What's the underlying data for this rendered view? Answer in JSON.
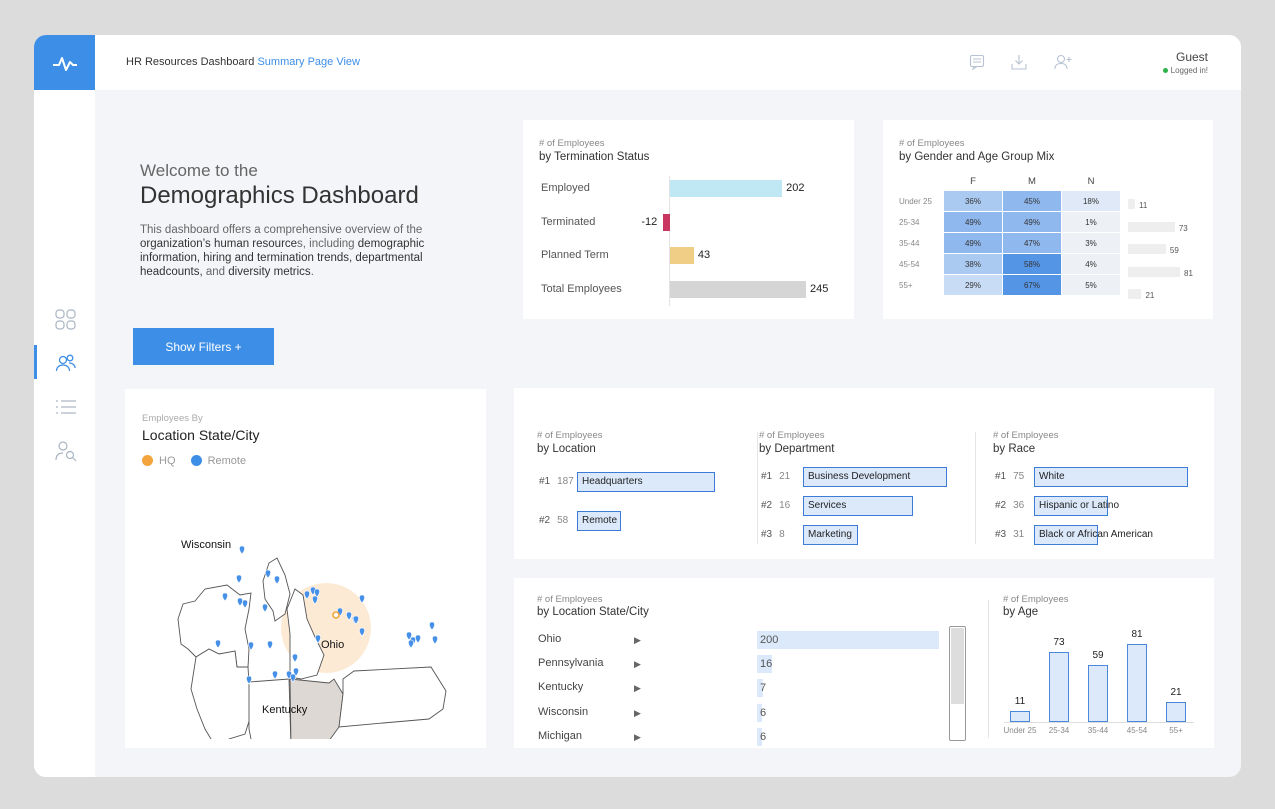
{
  "header": {
    "title": "HR Resources Dashboard",
    "view": "Summary Page View"
  },
  "user": {
    "name": "Guest",
    "status": "Logged in!"
  },
  "icons": {
    "logo": "pulse-icon",
    "topbar": [
      "comment-icon",
      "download-icon",
      "add-user-icon"
    ],
    "sidebar": [
      "grid-icon",
      "users-icon",
      "list-icon",
      "user-search-icon"
    ]
  },
  "welcome": {
    "line1": "Welcome to the",
    "line2": "Demographics Dashboard",
    "desc": [
      {
        "t": "This dashboard offers a comprehensive overview of the ",
        "dark": false
      },
      {
        "t": "organization’s human resource",
        "dark": true
      },
      {
        "t": "s, including ",
        "dark": false
      },
      {
        "t": "demographic information, hiring and termination trends, departmental headcounts,",
        "dark": true
      },
      {
        "t": " and ",
        "dark": false
      },
      {
        "t": "diversity metrics",
        "dark": true
      },
      {
        "t": ".",
        "dark": false
      }
    ]
  },
  "filters_button": "Show Filters +",
  "termination": {
    "subtitle": "# of Employees",
    "title": "by Termination Status",
    "rows": [
      {
        "label": "Employed",
        "value": 202,
        "color": "#bfe8f4"
      },
      {
        "label": "Terminated",
        "value": -12,
        "color": "#c9365f"
      },
      {
        "label": "Planned Term",
        "value": 43,
        "color": "#f0ce86"
      },
      {
        "label": "Total Employees",
        "value": 245,
        "color": "#d5d5d5"
      }
    ]
  },
  "gender_age": {
    "subtitle": "# of Employees",
    "title": "by Gender and Age Group Mix",
    "columns": [
      "F",
      "M",
      "N"
    ],
    "rows": [
      {
        "label": "Under 25",
        "values": [
          "36%",
          "45%",
          "18%"
        ],
        "total": 11
      },
      {
        "label": "25-34",
        "values": [
          "49%",
          "49%",
          "1%"
        ],
        "total": 73
      },
      {
        "label": "35-44",
        "values": [
          "49%",
          "47%",
          "3%"
        ],
        "total": 59
      },
      {
        "label": "45-54",
        "values": [
          "38%",
          "58%",
          "4%"
        ],
        "total": 81
      },
      {
        "label": "55+",
        "values": [
          "29%",
          "67%",
          "5%"
        ],
        "total": 21
      }
    ]
  },
  "map": {
    "subtitle": "Employees By",
    "title": "Location State/City",
    "legend": [
      {
        "label": "HQ",
        "color": "#f3a43c"
      },
      {
        "label": "Remote",
        "color": "#3d8ee6"
      }
    ],
    "states": [
      "Wisconsin",
      "Ohio",
      "Kentucky"
    ]
  },
  "by_location": {
    "subtitle": "# of Employees",
    "title": "by Location",
    "items": [
      {
        "rank": "#1",
        "count": 187,
        "label": "Headquarters",
        "value": 187
      },
      {
        "rank": "#2",
        "count": 58,
        "label": "Remote",
        "value": 58
      }
    ]
  },
  "by_department": {
    "subtitle": "# of Employees",
    "title": "by Department",
    "items": [
      {
        "rank": "#1",
        "count": 21,
        "label": "Business Development",
        "value": 21
      },
      {
        "rank": "#2",
        "count": 16,
        "label": "Services",
        "value": 16
      },
      {
        "rank": "#3",
        "count": 8,
        "label": "Marketing",
        "value": 8
      }
    ]
  },
  "by_race": {
    "subtitle": "# of Employees",
    "title": "by Race",
    "items": [
      {
        "rank": "#1",
        "count": 75,
        "label": "White",
        "value": 75
      },
      {
        "rank": "#2",
        "count": 36,
        "label": "Hispanic or Latino",
        "value": 36
      },
      {
        "rank": "#3",
        "count": 31,
        "label": "Black or African American",
        "value": 31
      }
    ]
  },
  "by_state": {
    "subtitle": "# of Employees",
    "title": "by Location State/City",
    "rows": [
      {
        "label": "Ohio",
        "value": 200
      },
      {
        "label": "Pennsylvania",
        "value": 16
      },
      {
        "label": "Kentucky",
        "value": 7
      },
      {
        "label": "Wisconsin",
        "value": 6
      },
      {
        "label": "Michigan",
        "value": 6
      }
    ]
  },
  "by_age": {
    "subtitle": "# of Employees",
    "title": "by Age",
    "chart_data": {
      "type": "bar",
      "categories": [
        "Under 25",
        "25-34",
        "35-44",
        "45-54",
        "55+"
      ],
      "values": [
        11,
        73,
        59,
        81,
        21
      ]
    }
  }
}
